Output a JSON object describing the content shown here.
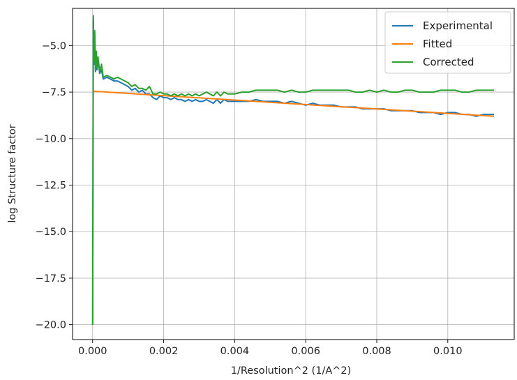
{
  "chart_data": {
    "type": "line",
    "xlabel": "1/Resolution^2 (1/A^2)",
    "ylabel": "log Structure factor",
    "xlim": [
      -0.000565,
      0.01187
    ],
    "ylim": [
      -20.8,
      -3.0
    ],
    "x_ticks": [
      0.0,
      0.002,
      0.004,
      0.006,
      0.008,
      0.01
    ],
    "x_tick_labels": [
      "0.000",
      "0.002",
      "0.004",
      "0.006",
      "0.008",
      "0.010"
    ],
    "y_ticks": [
      -5.0,
      -7.5,
      -10.0,
      -12.5,
      -15.0,
      -17.5,
      -20.0
    ],
    "y_tick_labels": [
      "−5.0",
      "−7.5",
      "−10.0",
      "−12.5",
      "−15.0",
      "−17.5",
      "−20.0"
    ],
    "grid": true,
    "legend_position": "top-right",
    "series": [
      {
        "name": "Experimental",
        "color": "#1f77b4",
        "x": [
          0.0,
          2e-05,
          4e-05,
          6e-05,
          8e-05,
          0.0001,
          0.00012,
          0.00015,
          0.0002,
          0.00025,
          0.0003,
          0.0004,
          0.0005,
          0.0006,
          0.0007,
          0.0008,
          0.0009,
          0.001,
          0.0011,
          0.0012,
          0.0013,
          0.0014,
          0.0015,
          0.0016,
          0.0017,
          0.0018,
          0.0019,
          0.002,
          0.0021,
          0.0022,
          0.0023,
          0.0024,
          0.0025,
          0.0026,
          0.0027,
          0.0028,
          0.0029,
          0.003,
          0.0031,
          0.0032,
          0.0033,
          0.0034,
          0.0035,
          0.0036,
          0.0037,
          0.0038,
          0.0039,
          0.004,
          0.0042,
          0.0044,
          0.0046,
          0.0048,
          0.005,
          0.0052,
          0.0054,
          0.0056,
          0.0058,
          0.006,
          0.0062,
          0.0064,
          0.0066,
          0.0068,
          0.007,
          0.0072,
          0.0074,
          0.0076,
          0.0078,
          0.008,
          0.0082,
          0.0084,
          0.0086,
          0.0088,
          0.009,
          0.0092,
          0.0094,
          0.0096,
          0.0098,
          0.01,
          0.0102,
          0.0104,
          0.0106,
          0.0108,
          0.011,
          0.0113
        ],
        "values": [
          -20.0,
          -3.6,
          -6.0,
          -4.4,
          -6.4,
          -5.6,
          -6.3,
          -5.8,
          -6.5,
          -6.3,
          -6.8,
          -6.7,
          -6.8,
          -6.9,
          -6.9,
          -7.0,
          -7.1,
          -7.2,
          -7.4,
          -7.3,
          -7.5,
          -7.4,
          -7.6,
          -7.6,
          -7.8,
          -7.9,
          -7.7,
          -7.8,
          -7.8,
          -7.9,
          -7.8,
          -7.9,
          -7.9,
          -8.0,
          -7.9,
          -8.0,
          -7.9,
          -8.0,
          -8.0,
          -7.9,
          -8.0,
          -8.1,
          -7.9,
          -8.1,
          -7.9,
          -8.0,
          -8.0,
          -8.0,
          -8.0,
          -8.0,
          -7.9,
          -8.0,
          -8.0,
          -8.0,
          -8.1,
          -8.0,
          -8.1,
          -8.2,
          -8.1,
          -8.2,
          -8.2,
          -8.2,
          -8.3,
          -8.3,
          -8.3,
          -8.4,
          -8.4,
          -8.4,
          -8.4,
          -8.5,
          -8.5,
          -8.5,
          -8.5,
          -8.6,
          -8.6,
          -8.6,
          -8.7,
          -8.6,
          -8.6,
          -8.7,
          -8.7,
          -8.8,
          -8.7,
          -8.7
        ]
      },
      {
        "name": "Fitted",
        "color": "#ff7f0e",
        "x": [
          0.0,
          0.0113
        ],
        "values": [
          -7.45,
          -8.8
        ]
      },
      {
        "name": "Corrected",
        "color": "#2ca02c",
        "x": [
          0.0,
          2e-05,
          4e-05,
          6e-05,
          8e-05,
          0.0001,
          0.00012,
          0.00015,
          0.0002,
          0.00025,
          0.0003,
          0.0004,
          0.0005,
          0.0006,
          0.0007,
          0.0008,
          0.0009,
          0.001,
          0.0011,
          0.0012,
          0.0013,
          0.0014,
          0.0015,
          0.0016,
          0.0017,
          0.0018,
          0.0019,
          0.002,
          0.0021,
          0.0022,
          0.0023,
          0.0024,
          0.0025,
          0.0026,
          0.0027,
          0.0028,
          0.0029,
          0.003,
          0.0031,
          0.0032,
          0.0033,
          0.0034,
          0.0035,
          0.0036,
          0.0037,
          0.0038,
          0.0039,
          0.004,
          0.0042,
          0.0044,
          0.0046,
          0.0048,
          0.005,
          0.0052,
          0.0054,
          0.0056,
          0.0058,
          0.006,
          0.0062,
          0.0064,
          0.0066,
          0.0068,
          0.007,
          0.0072,
          0.0074,
          0.0076,
          0.0078,
          0.008,
          0.0082,
          0.0084,
          0.0086,
          0.0088,
          0.009,
          0.0092,
          0.0094,
          0.0096,
          0.0098,
          0.01,
          0.0102,
          0.0104,
          0.0106,
          0.0108,
          0.011,
          0.0113
        ],
        "values": [
          -20.0,
          -3.4,
          -5.9,
          -4.2,
          -6.3,
          -5.3,
          -6.2,
          -5.6,
          -6.4,
          -6.0,
          -6.7,
          -6.6,
          -6.7,
          -6.8,
          -6.7,
          -6.8,
          -6.9,
          -7.0,
          -7.2,
          -7.1,
          -7.3,
          -7.3,
          -7.4,
          -7.2,
          -7.6,
          -7.6,
          -7.5,
          -7.6,
          -7.6,
          -7.7,
          -7.6,
          -7.7,
          -7.6,
          -7.7,
          -7.6,
          -7.7,
          -7.6,
          -7.7,
          -7.6,
          -7.5,
          -7.6,
          -7.7,
          -7.5,
          -7.7,
          -7.5,
          -7.6,
          -7.6,
          -7.6,
          -7.5,
          -7.5,
          -7.4,
          -7.4,
          -7.4,
          -7.4,
          -7.5,
          -7.4,
          -7.5,
          -7.5,
          -7.4,
          -7.4,
          -7.4,
          -7.4,
          -7.4,
          -7.4,
          -7.5,
          -7.5,
          -7.4,
          -7.5,
          -7.4,
          -7.5,
          -7.5,
          -7.4,
          -7.4,
          -7.5,
          -7.5,
          -7.5,
          -7.4,
          -7.4,
          -7.4,
          -7.5,
          -7.5,
          -7.4,
          -7.4,
          -7.4
        ]
      }
    ]
  }
}
